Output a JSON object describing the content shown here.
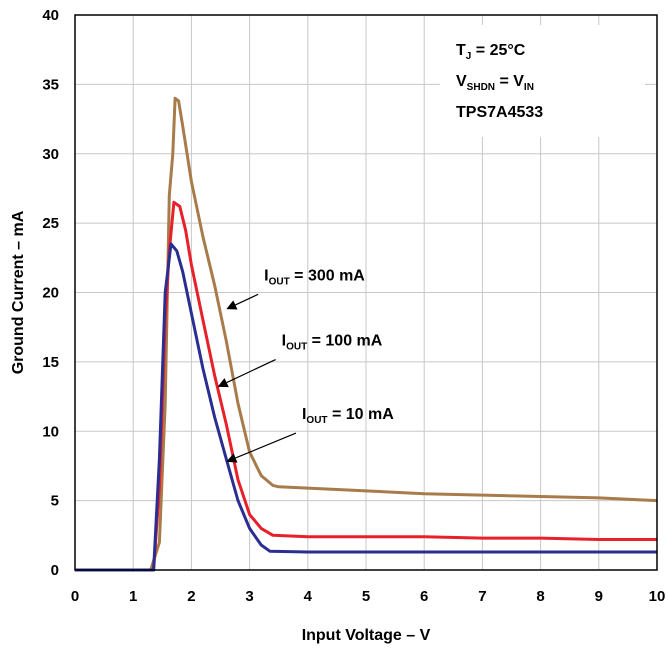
{
  "chart_data": {
    "type": "line",
    "xlabel": "Input Voltage – V",
    "ylabel": "Ground Current – mA",
    "xlim": [
      0,
      10
    ],
    "ylim": [
      0,
      40
    ],
    "xticks": [
      0,
      1,
      2,
      3,
      4,
      5,
      6,
      7,
      8,
      9,
      10
    ],
    "yticks": [
      0,
      5,
      10,
      15,
      20,
      25,
      30,
      35,
      40
    ],
    "grid": true,
    "conditions": [
      {
        "main": "T",
        "sub": "J",
        "rest": " = 25°C"
      },
      {
        "main": "V",
        "sub": "SHDN",
        "rest": " = V",
        "sub2": "IN"
      },
      {
        "main": "TPS7A4533",
        "sub": "",
        "rest": ""
      }
    ],
    "series": [
      {
        "name": "I_OUT = 300 mA",
        "label_main": "I",
        "label_sub": "OUT",
        "label_rest": " = 300 mA",
        "color": "#a87b4b",
        "points": [
          [
            0,
            0
          ],
          [
            1.2,
            0
          ],
          [
            1.3,
            0
          ],
          [
            1.45,
            2
          ],
          [
            1.55,
            12
          ],
          [
            1.62,
            27
          ],
          [
            1.68,
            30
          ],
          [
            1.72,
            34
          ],
          [
            1.78,
            33.8
          ],
          [
            1.85,
            32
          ],
          [
            2.0,
            28
          ],
          [
            2.2,
            24
          ],
          [
            2.4,
            20.5
          ],
          [
            2.6,
            16.5
          ],
          [
            2.8,
            12
          ],
          [
            3.0,
            8.5
          ],
          [
            3.2,
            6.8
          ],
          [
            3.4,
            6.1
          ],
          [
            3.5,
            6.0
          ],
          [
            4,
            5.9
          ],
          [
            5,
            5.7
          ],
          [
            6,
            5.5
          ],
          [
            7,
            5.4
          ],
          [
            8,
            5.3
          ],
          [
            9,
            5.2
          ],
          [
            10,
            5.0
          ]
        ],
        "annot_target": [
          2.6,
          18.8
        ],
        "annot_text_at": [
          3.25,
          20.3
        ]
      },
      {
        "name": "I_OUT = 100 mA",
        "label_main": "I",
        "label_sub": "OUT",
        "label_rest": " = 100 mA",
        "color": "#e8202a",
        "points": [
          [
            0,
            0
          ],
          [
            1.25,
            0
          ],
          [
            1.35,
            0
          ],
          [
            1.45,
            6
          ],
          [
            1.55,
            18
          ],
          [
            1.62,
            23
          ],
          [
            1.7,
            26.5
          ],
          [
            1.8,
            26.2
          ],
          [
            1.9,
            24.5
          ],
          [
            2.0,
            22
          ],
          [
            2.2,
            18
          ],
          [
            2.4,
            14
          ],
          [
            2.6,
            10.5
          ],
          [
            2.8,
            6.5
          ],
          [
            3.0,
            4
          ],
          [
            3.2,
            3
          ],
          [
            3.4,
            2.5
          ],
          [
            4,
            2.4
          ],
          [
            5,
            2.4
          ],
          [
            6,
            2.4
          ],
          [
            7,
            2.3
          ],
          [
            8,
            2.3
          ],
          [
            9,
            2.2
          ],
          [
            10,
            2.2
          ]
        ],
        "annot_target": [
          2.45,
          13.2
        ],
        "annot_text_at": [
          3.55,
          15.6
        ]
      },
      {
        "name": "I_OUT = 10 mA",
        "label_main": "I",
        "label_sub": "OUT",
        "label_rest": " = 10 mA",
        "color": "#2b2e91",
        "points": [
          [
            0,
            0
          ],
          [
            1.25,
            0
          ],
          [
            1.35,
            0
          ],
          [
            1.45,
            8
          ],
          [
            1.55,
            20
          ],
          [
            1.65,
            23.5
          ],
          [
            1.75,
            23
          ],
          [
            1.85,
            21.5
          ],
          [
            2.0,
            18.5
          ],
          [
            2.2,
            14.5
          ],
          [
            2.4,
            11
          ],
          [
            2.6,
            8
          ],
          [
            2.8,
            5
          ],
          [
            3.0,
            3
          ],
          [
            3.2,
            1.8
          ],
          [
            3.35,
            1.35
          ],
          [
            4,
            1.3
          ],
          [
            5,
            1.3
          ],
          [
            6,
            1.3
          ],
          [
            7,
            1.3
          ],
          [
            8,
            1.3
          ],
          [
            9,
            1.3
          ],
          [
            10,
            1.3
          ]
        ],
        "annot_target": [
          2.6,
          7.8
        ],
        "annot_text_at": [
          3.9,
          10.3
        ]
      }
    ]
  }
}
